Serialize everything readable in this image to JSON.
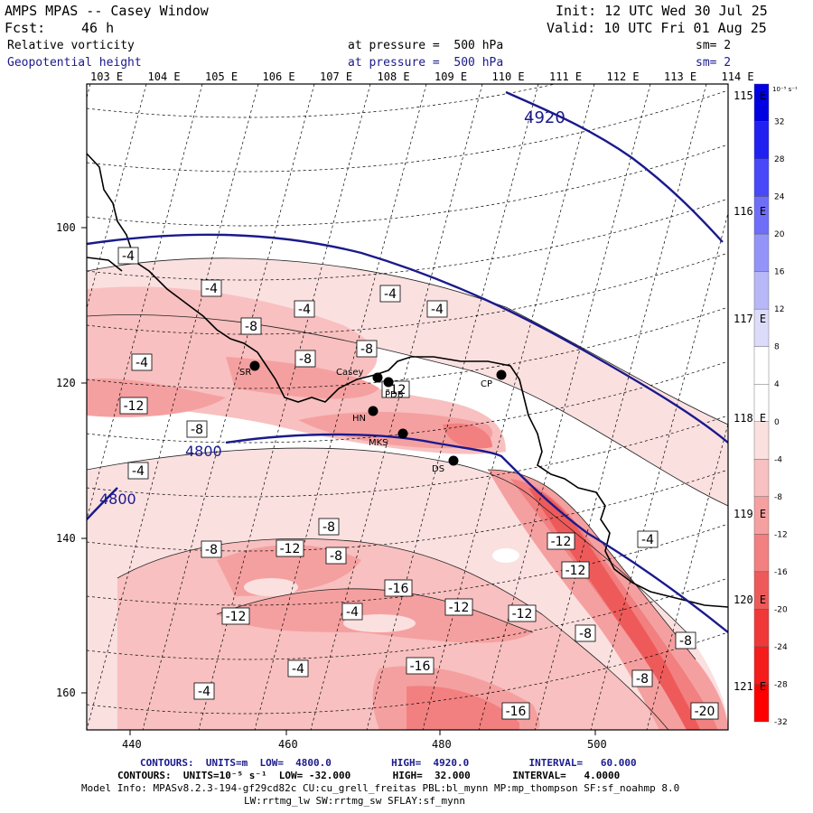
{
  "header": {
    "title": "AMPS MPAS -- Casey Window",
    "forecast_label": "Fcst:",
    "forecast_value": "46 h",
    "init": "Init: 12 UTC Wed 30 Jul 25",
    "valid": "Valid: 10 UTC Fri 01 Aug 25",
    "field1_name": "Relative vorticity",
    "field1_level": "at pressure =  500 hPa",
    "field1_sm": "sm= 2",
    "field2_name": "Geopotential height",
    "field2_level": "at pressure =  500 hPa",
    "field2_sm": "sm= 2"
  },
  "longitude_labels_top": [
    "103 E",
    "104 E",
    "105 E",
    "106 E",
    "107 E",
    "108 E",
    "109 E",
    "110 E",
    "111 E",
    "112 E",
    "113 E",
    "114 E"
  ],
  "longitude_labels_right": [
    "115 E",
    "116 E",
    "117 E",
    "118 E",
    "119 E",
    "120 E",
    "121 E"
  ],
  "axes": {
    "x_ticks": [
      "440",
      "460",
      "480",
      "500"
    ],
    "y_ticks": [
      "100",
      "120",
      "140",
      "160"
    ]
  },
  "stations": [
    {
      "code": "SR"
    },
    {
      "code": "Casey"
    },
    {
      "code": "PDB"
    },
    {
      "code": "HN"
    },
    {
      "code": "MKS"
    },
    {
      "code": "DS"
    },
    {
      "code": "CP"
    }
  ],
  "height_contours": [
    {
      "label": "4920"
    },
    {
      "label": "4800"
    },
    {
      "label": "4800"
    }
  ],
  "vorticity_labels": [
    "-4",
    "-4",
    "-4",
    "-4",
    "-4",
    "-8",
    "-8",
    "-8",
    "-4",
    "-12",
    "-8",
    "-4",
    "-8",
    "-8",
    "-12",
    "-8",
    "-16",
    "-12",
    "-4",
    "-12",
    "-12",
    "-12",
    "-4",
    "-12",
    "-8",
    "-4",
    "-16",
    "-8",
    "-16",
    "-20",
    "-4",
    "-8",
    "-12"
  ],
  "colorbar": {
    "units": "10⁻⁵ s⁻¹",
    "labels": [
      "32",
      "28",
      "24",
      "20",
      "16",
      "12",
      "8",
      "4",
      "0",
      "-4",
      "-8",
      "-12",
      "-16",
      "-20",
      "-24",
      "-28",
      "-32"
    ],
    "colors": [
      "#0000e0",
      "#2020f0",
      "#4848f8",
      "#6e6ef8",
      "#9494f8",
      "#b8b8f8",
      "#dcdcfa",
      "#ffffff",
      "#ffffff",
      "#fbe0e0",
      "#f8c0c0",
      "#f5a0a0",
      "#f28080",
      "#ee5a5a",
      "#f03838",
      "#f51c1c",
      "#ff0000"
    ]
  },
  "footer": {
    "line1": "CONTOURS:  UNITS=m  LOW=  4800.0          HIGH=  4920.0          INTERVAL=   60.000",
    "line2": "CONTOURS:  UNITS=10⁻⁵ s⁻¹  LOW= -32.000       HIGH=  32.000       INTERVAL=   4.0000",
    "line3": "Model Info: MPASv8.2.3-194-gf29cd82c CU:cu_grell_freitas PBL:bl_mynn MP:mp_thompson SF:sf_noahmp 8.0",
    "line4": "LW:rrtmg_lw SW:rrtmg_sw SFLAY:sf_mynn"
  },
  "colors": {
    "height_contour": "#1a1a8c",
    "coast": "#000000",
    "shade_light": "#fbe0e0",
    "shade_mid": "#f5a0a0",
    "shade_dark": "#ee5a5a"
  }
}
